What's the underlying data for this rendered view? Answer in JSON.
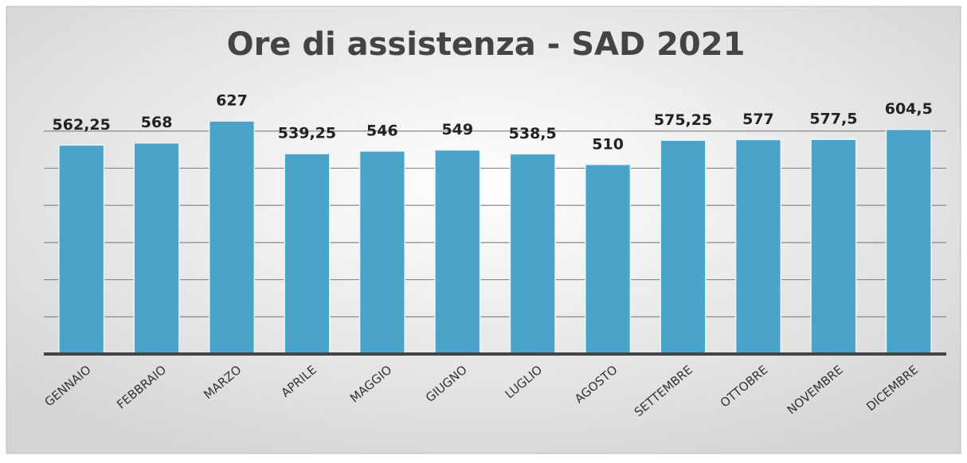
{
  "chart_data": {
    "type": "bar",
    "title": "Ore di assistenza - SAD 2021",
    "categories": [
      "GENNAIO",
      "FEBBRAIO",
      "MARZO",
      "APRILE",
      "MAGGIO",
      "GIUGNO",
      "LUGLIO",
      "AGOSTO",
      "SETTEMBRE",
      "OTTOBRE",
      "NOVEMBRE",
      "DICEMBRE"
    ],
    "values": [
      562.25,
      568,
      627,
      539.25,
      546,
      549,
      538.5,
      510,
      575.25,
      577,
      577.5,
      604.5
    ],
    "value_labels": [
      "562,25",
      "568",
      "627",
      "539,25",
      "546",
      "549",
      "538,5",
      "510",
      "575,25",
      "577",
      "577,5",
      "604,5"
    ],
    "color": "#4ba3c7",
    "ylim": [
      0,
      700
    ],
    "yticks": [
      0,
      100,
      200,
      300,
      400,
      500,
      600
    ],
    "grid": true
  }
}
